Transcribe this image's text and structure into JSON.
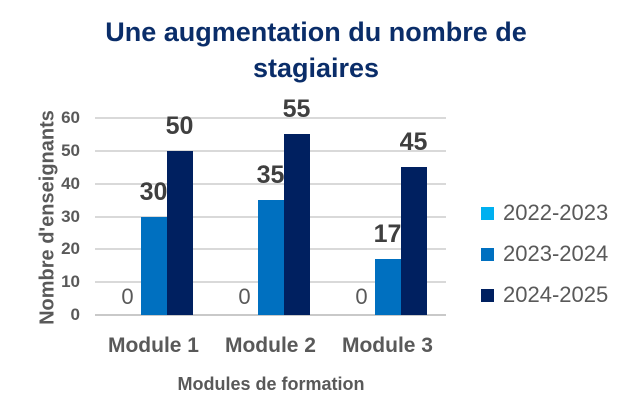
{
  "chart_data": {
    "type": "bar",
    "title": "Une augmentation du nombre de stagiaires",
    "title_lines": [
      "Une augmentation du nombre de",
      "stagiaires"
    ],
    "xlabel": "Modules de formation",
    "ylabel": "Nombre d'enseignants",
    "categories": [
      "Module 1",
      "Module 2",
      "Module 3"
    ],
    "series": [
      {
        "name": "2022-2023",
        "color": "#00b0f0",
        "values": [
          0,
          0,
          0
        ]
      },
      {
        "name": "2023-2024",
        "color": "#0070c0",
        "values": [
          30,
          35,
          17
        ]
      },
      {
        "name": "2024-2025",
        "color": "#002060",
        "values": [
          50,
          55,
          45
        ]
      }
    ],
    "data_labels": {
      "show": true,
      "values": [
        [
          "0",
          "30",
          "50"
        ],
        [
          "0",
          "35",
          "55"
        ],
        [
          "0",
          "17",
          "45"
        ]
      ]
    },
    "ylim": [
      0,
      60
    ],
    "ytick_step": 10,
    "ytick_labels": [
      "0",
      "10",
      "20",
      "30",
      "40",
      "50",
      "60"
    ],
    "grid": true,
    "legend_position": "right",
    "colors": {
      "title": "#0a2d69",
      "axis_text": "#595959",
      "data_label": "#3f3f3f",
      "gridline": "#d9d9d9",
      "axis_line": "#c9c9c9"
    }
  }
}
